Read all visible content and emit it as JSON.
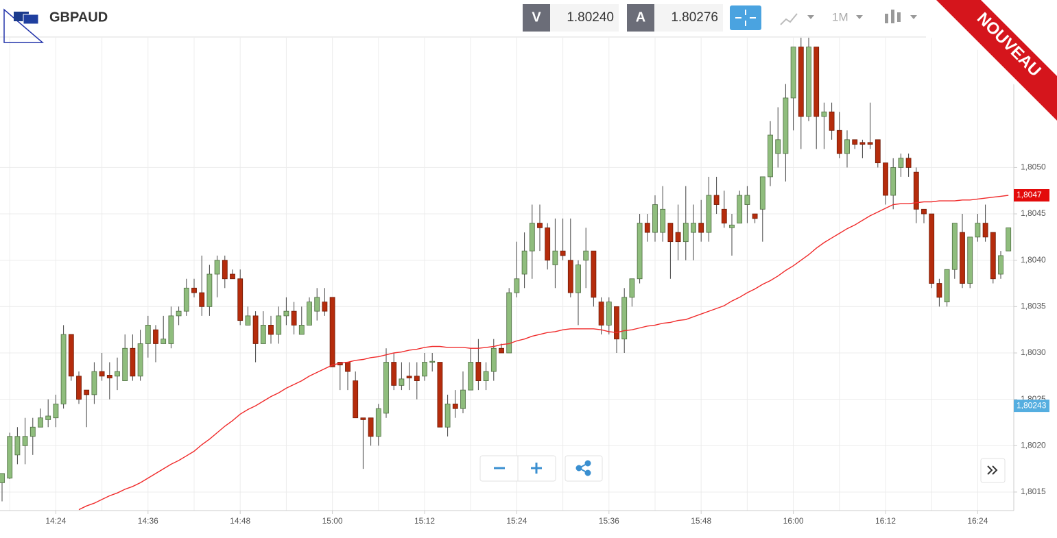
{
  "header": {
    "symbol": "GBPAUD",
    "bid_label": "V",
    "bid": "1.80240",
    "ask_label": "A",
    "ask": "1.80276",
    "timeframe": "1M"
  },
  "badge": "NOUVEAU",
  "chart_data": {
    "type": "candlestick",
    "categories": [
      null,
      null,
      null,
      null,
      null,
      null,
      null,
      "14:24",
      null,
      null,
      null,
      null,
      null,
      null,
      null,
      null,
      null,
      null,
      null,
      "14:36",
      null,
      null,
      null,
      null,
      null,
      null,
      null,
      null,
      null,
      null,
      null,
      "14:48",
      null,
      null,
      null,
      null,
      null,
      null,
      null,
      null,
      null,
      null,
      null,
      "15:00",
      null,
      null,
      null,
      null,
      null,
      null,
      null,
      null,
      null,
      null,
      null,
      "15:12",
      null,
      null,
      null,
      null,
      null,
      null,
      null,
      null,
      null,
      null,
      null,
      "15:24",
      null,
      null,
      null,
      null,
      null,
      null,
      null,
      null,
      null,
      null,
      null,
      "15:36",
      null,
      null,
      null,
      null,
      null,
      null,
      null,
      null,
      null,
      null,
      null,
      "15:48",
      null,
      null,
      null,
      null,
      null,
      null,
      null,
      null,
      null,
      null,
      null,
      "16:00",
      null,
      null,
      null,
      null,
      null,
      null,
      null,
      null,
      null,
      null,
      null,
      "16:12",
      null,
      null,
      null,
      null,
      null,
      null,
      null,
      null,
      null,
      null,
      null,
      "16:24",
      null,
      null,
      null,
      null
    ],
    "open": [
      1.8016,
      1.80165,
      1.8019,
      1.802,
      1.8021,
      1.8022,
      1.80228,
      1.8023,
      1.80245,
      1.8032,
      1.80275,
      1.8026,
      1.80255,
      1.8028,
      1.80276,
      1.80275,
      1.8027,
      1.80305,
      1.80275,
      1.8031,
      1.80325,
      1.8031,
      1.8031,
      1.8034,
      1.80345,
      1.8037,
      1.80365,
      1.8035,
      1.80385,
      1.804,
      1.80385,
      1.8038,
      1.8033,
      1.8034,
      1.8031,
      1.8033,
      1.8032,
      1.8034,
      1.80345,
      1.8032,
      1.8033,
      1.80345,
      1.80355,
      1.8036,
      1.8029,
      1.8029,
      1.8027,
      1.8023,
      1.8023,
      1.8021,
      1.80235,
      1.8029,
      1.80265,
      1.80275,
      1.80275,
      1.80275,
      1.8029,
      1.8029,
      1.8022,
      1.80245,
      1.8024,
      1.8026,
      1.8029,
      1.8027,
      1.8028,
      1.80305,
      1.803,
      1.80365,
      1.80385,
      1.8041,
      1.8044,
      1.80435,
      1.80395,
      1.8041,
      1.804,
      1.80365,
      1.804,
      1.8041,
      1.80355,
      1.8033,
      1.8035,
      1.80315,
      1.8036,
      1.8038,
      1.8044,
      1.8043,
      1.8043,
      1.8044,
      1.8043,
      1.8042,
      1.8043,
      1.8044,
      1.8043,
      1.8047,
      1.80455,
      1.80435,
      1.8044,
      1.8046,
      1.8045,
      1.80455,
      1.8049,
      1.80515,
      1.80515,
      1.80575,
      1.8063,
      1.80555,
      1.8063,
      1.80555,
      1.8056,
      1.8054,
      1.80515,
      1.8053,
      1.80527,
      1.80527,
      1.8053,
      1.80505,
      1.8047,
      1.805,
      1.8051,
      1.80495,
      1.80455,
      1.8045,
      1.80375,
      1.80355,
      1.8039,
      1.8043,
      1.80375,
      1.80425,
      1.8044,
      1.8043,
      1.80385,
      1.8041
    ],
    "high": [
      1.8017,
      1.80214,
      1.8022,
      1.8023,
      1.8023,
      1.8024,
      1.8025,
      1.80255,
      1.8033,
      1.8032,
      1.8028,
      1.8026,
      1.8029,
      1.803,
      1.8029,
      1.80295,
      1.8032,
      1.8032,
      1.80325,
      1.8034,
      1.8033,
      1.8034,
      1.8035,
      1.8035,
      1.8038,
      1.8038,
      1.80405,
      1.80395,
      1.80405,
      1.80405,
      1.8039,
      1.8039,
      1.8035,
      1.80345,
      1.80345,
      1.8034,
      1.8035,
      1.8036,
      1.80355,
      1.8035,
      1.8036,
      1.8037,
      1.8037,
      1.8036,
      1.8029,
      1.8029,
      1.8028,
      1.8023,
      1.8023,
      1.80245,
      1.80305,
      1.803,
      1.8029,
      1.8029,
      1.8029,
      1.803,
      1.803,
      1.8029,
      1.80255,
      1.8026,
      1.8028,
      1.80305,
      1.80315,
      1.8029,
      1.80315,
      1.8031,
      1.8037,
      1.8042,
      1.8043,
      1.8046,
      1.8046,
      1.8044,
      1.80445,
      1.80445,
      1.80445,
      1.804,
      1.80435,
      1.8041,
      1.8036,
      1.8036,
      1.8035,
      1.8037,
      1.8038,
      1.8045,
      1.8045,
      1.8047,
      1.8048,
      1.8044,
      1.8046,
      1.8048,
      1.8046,
      1.80465,
      1.8049,
      1.8049,
      1.80475,
      1.8045,
      1.80475,
      1.8048,
      1.8045,
      1.8049,
      1.8055,
      1.80565,
      1.8059,
      1.8063,
      1.8064,
      1.8064,
      1.8063,
      1.8057,
      1.8057,
      1.8056,
      1.8054,
      1.8053,
      1.8053,
      1.8057,
      1.8053,
      1.80505,
      1.8051,
      1.80515,
      1.80515,
      1.805,
      1.80455,
      1.8045,
      1.8038,
      1.8039,
      1.8044,
      1.8045,
      1.80425,
      1.8045,
      1.8046,
      1.8043,
      1.8041,
      1.80435
    ],
    "low": [
      1.8014,
      1.80164,
      1.8018,
      1.8018,
      1.8019,
      1.8022,
      1.8022,
      1.8022,
      1.8024,
      1.8027,
      1.80245,
      1.8022,
      1.80245,
      1.8027,
      1.8025,
      1.8026,
      1.8027,
      1.8027,
      1.8027,
      1.80295,
      1.8029,
      1.8031,
      1.80305,
      1.8033,
      1.8034,
      1.8036,
      1.8034,
      1.8034,
      1.8036,
      1.8037,
      1.8038,
      1.8033,
      1.8033,
      1.8029,
      1.8031,
      1.8031,
      1.8031,
      1.8033,
      1.8032,
      1.8032,
      1.8033,
      1.80335,
      1.8034,
      1.80285,
      1.8026,
      1.8026,
      1.8023,
      1.80175,
      1.802,
      1.802,
      1.8023,
      1.8026,
      1.8026,
      1.8026,
      1.8025,
      1.8027,
      1.8028,
      1.8022,
      1.8021,
      1.8023,
      1.80235,
      1.8026,
      1.8026,
      1.8026,
      1.8027,
      1.803,
      1.803,
      1.8036,
      1.8037,
      1.8038,
      1.8041,
      1.8039,
      1.8037,
      1.804,
      1.8036,
      1.8033,
      1.8037,
      1.8035,
      1.8032,
      1.8032,
      1.803,
      1.803,
      1.8035,
      1.80375,
      1.8042,
      1.8042,
      1.8042,
      1.8038,
      1.804,
      1.804,
      1.804,
      1.8042,
      1.8042,
      1.8045,
      1.80435,
      1.80405,
      1.8044,
      1.8044,
      1.8044,
      1.8042,
      1.8048,
      1.805,
      1.80485,
      1.8054,
      1.8052,
      1.8055,
      1.8052,
      1.8052,
      1.8053,
      1.8051,
      1.805,
      1.8052,
      1.8051,
      1.8052,
      1.805,
      1.8046,
      1.80455,
      1.8049,
      1.8049,
      1.8044,
      1.8044,
      1.8037,
      1.8035,
      1.8035,
      1.8038,
      1.8037,
      1.8037,
      1.8042,
      1.8042,
      1.80375,
      1.8038,
      1.8041
    ],
    "close": [
      1.8017,
      1.8021,
      1.8021,
      1.8021,
      1.8022,
      1.8023,
      1.80232,
      1.80245,
      1.8032,
      1.80275,
      1.8025,
      1.80255,
      1.8028,
      1.80275,
      1.80273,
      1.8028,
      1.80305,
      1.80275,
      1.8031,
      1.8033,
      1.8031,
      1.80315,
      1.8034,
      1.80345,
      1.8037,
      1.80365,
      1.8035,
      1.80385,
      1.804,
      1.8038,
      1.8038,
      1.80335,
      1.8034,
      1.8031,
      1.8033,
      1.8032,
      1.8034,
      1.80345,
      1.8033,
      1.8033,
      1.80355,
      1.8036,
      1.80345,
      1.80285,
      1.80287,
      1.8028,
      1.8023,
      1.80228,
      1.8021,
      1.8024,
      1.8029,
      1.80265,
      1.80272,
      1.80273,
      1.8027,
      1.8029,
      1.80291,
      1.8022,
      1.80245,
      1.8024,
      1.8026,
      1.8029,
      1.8027,
      1.8028,
      1.80305,
      1.803,
      1.80365,
      1.8038,
      1.8041,
      1.8044,
      1.80435,
      1.804,
      1.8041,
      1.80405,
      1.80365,
      1.80395,
      1.8041,
      1.8036,
      1.8033,
      1.80355,
      1.80315,
      1.8036,
      1.8038,
      1.8044,
      1.8043,
      1.8046,
      1.80455,
      1.8042,
      1.8042,
      1.8044,
      1.8044,
      1.8043,
      1.8047,
      1.8046,
      1.8044,
      1.80438,
      1.8047,
      1.8047,
      1.80445,
      1.8049,
      1.80535,
      1.8053,
      1.80575,
      1.8063,
      1.80555,
      1.8063,
      1.80555,
      1.8056,
      1.8054,
      1.80515,
      1.8053,
      1.80525,
      1.80525,
      1.80525,
      1.80505,
      1.8047,
      1.805,
      1.8051,
      1.805,
      1.80455,
      1.8045,
      1.80375,
      1.8036,
      1.8039,
      1.8044,
      1.80375,
      1.80425,
      1.8044,
      1.80425,
      1.8038,
      1.80405,
      1.80435
    ],
    "ma_values": [
      null,
      null,
      null,
      null,
      null,
      null,
      null,
      null,
      null,
      null,
      1.80131,
      1.80135,
      1.80138,
      1.80142,
      1.80146,
      1.80149,
      1.80153,
      1.80156,
      1.8016,
      1.80165,
      1.8017,
      1.80175,
      1.8018,
      1.80184,
      1.80189,
      1.80194,
      1.80201,
      1.80207,
      1.80214,
      1.80221,
      1.80227,
      1.80234,
      1.80239,
      1.80243,
      1.80248,
      1.80253,
      1.80257,
      1.80262,
      1.80266,
      1.8027,
      1.80275,
      1.80279,
      1.80283,
      1.80287,
      1.80289,
      1.8029,
      1.80292,
      1.80293,
      1.80295,
      1.80296,
      1.80298,
      1.803,
      1.80301,
      1.80303,
      1.80304,
      1.80306,
      1.80307,
      1.80307,
      1.80306,
      1.80306,
      1.80306,
      1.80305,
      1.80305,
      1.80306,
      1.80307,
      1.80309,
      1.8031,
      1.80313,
      1.80315,
      1.80318,
      1.8032,
      1.80322,
      1.80323,
      1.80325,
      1.80326,
      1.80326,
      1.80326,
      1.80326,
      1.80325,
      1.80323,
      1.80322,
      1.80324,
      1.80325,
      1.80327,
      1.80329,
      1.8033,
      1.80332,
      1.80333,
      1.80335,
      1.80336,
      1.80339,
      1.80342,
      1.80345,
      1.80348,
      1.80351,
      1.80356,
      1.8036,
      1.80365,
      1.80369,
      1.80374,
      1.80378,
      1.80383,
      1.80389,
      1.80394,
      1.804,
      1.80406,
      1.80413,
      1.80419,
      1.80424,
      1.80429,
      1.80434,
      1.80438,
      1.80443,
      1.80448,
      1.80452,
      1.80456,
      1.8046,
      1.80461,
      1.80461,
      1.80462,
      1.80463,
      1.80463,
      1.80464,
      1.80464,
      1.80464,
      1.80465,
      1.80465,
      1.80466,
      1.80467,
      1.80468,
      1.80469,
      1.8047
    ],
    "up_color": "#8fbd7d",
    "down_color": "#b52c0c",
    "ma_color": "#f02a2a",
    "ylim": [
      1.8013,
      1.8064
    ],
    "yticks": [
      {
        "value": 1.8015,
        "label": "1,8015"
      },
      {
        "value": 1.802,
        "label": "1,8020"
      },
      {
        "value": 1.8025,
        "label": "1,8025"
      },
      {
        "value": 1.803,
        "label": "1,8030"
      },
      {
        "value": 1.8035,
        "label": "1,8035"
      },
      {
        "value": 1.804,
        "label": "1,8040"
      },
      {
        "value": 1.8045,
        "label": "1,8045"
      },
      {
        "value": 1.805,
        "label": "1,8050"
      }
    ],
    "grid": true,
    "price_markers": [
      {
        "value": 1.8047,
        "label": "1,8047",
        "color": "#e30b0b"
      },
      {
        "value": 1.80243,
        "label": "1,80243",
        "color": "#55aee0"
      }
    ]
  }
}
